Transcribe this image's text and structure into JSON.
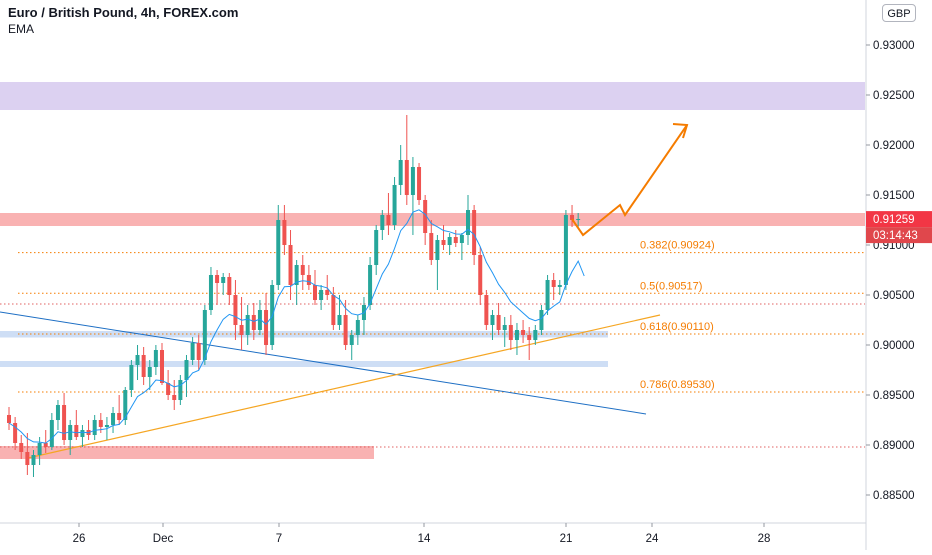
{
  "header": {
    "symbol_title": "Euro / British Pound, 4h, FOREX.com",
    "indicator": "EMA",
    "currency_button": "GBP"
  },
  "price_axis": {
    "ticks": [
      "0.93000",
      "0.92500",
      "0.92000",
      "0.91500",
      "0.91000",
      "0.90500",
      "0.90000",
      "0.89500",
      "0.89000",
      "0.88500"
    ],
    "current_price": "0.91259",
    "countdown": "03:14:43",
    "price_color": "#f23645",
    "countdown_color": "#e0474c"
  },
  "time_axis": {
    "ticks": [
      "26",
      "Dec",
      "7",
      "14",
      "21",
      "24",
      "28"
    ]
  },
  "fib_levels": [
    {
      "label": "0.382(0.90924)",
      "price": 0.90924
    },
    {
      "label": "0.5(0.90517)",
      "price": 0.90517
    },
    {
      "label": "0.618(0.90110)",
      "price": 0.9011
    },
    {
      "label": "0.786(0.89530)",
      "price": 0.8953
    }
  ],
  "colors": {
    "up_candle": "#26a69a",
    "down_candle": "#ef5350",
    "ema": "#2196f3",
    "fib": "#f57c00",
    "resistance_zone": "#f8a5a5",
    "top_zone": "#d6c9ee",
    "support_zone": "#c5d8f3",
    "trend_up": "#f5a623",
    "trend_down": "#1e6fc4",
    "projection": "#f57c00"
  },
  "chart_data": {
    "type": "candlestick",
    "title": "Euro / British Pound, 4h, FOREX.com",
    "ylabel": "GBP",
    "ylim": [
      0.883,
      0.9335
    ],
    "x_ticks": [
      "26",
      "Dec",
      "7",
      "14",
      "21",
      "24",
      "28"
    ],
    "indicators": [
      "EMA"
    ],
    "zones": [
      {
        "name": "top",
        "low": 0.9235,
        "high": 0.9263
      },
      {
        "name": "resistance",
        "low": 0.9119,
        "high": 0.9132
      },
      {
        "name": "support-1",
        "low": 0.90075,
        "high": 0.9014
      },
      {
        "name": "support-2",
        "low": 0.8978,
        "high": 0.8984
      },
      {
        "name": "demand",
        "low": 0.8886,
        "high": 0.8899
      }
    ],
    "dotted_levels": [
      0.90924,
      0.90517,
      0.9041,
      0.9011,
      0.8953,
      0.8898
    ],
    "candles": [
      [
        0.893,
        0.8938,
        0.8915,
        0.8922
      ],
      [
        0.8922,
        0.8928,
        0.8895,
        0.8902
      ],
      [
        0.8902,
        0.891,
        0.8886,
        0.8893
      ],
      [
        0.8893,
        0.8912,
        0.887,
        0.888
      ],
      [
        0.888,
        0.8895,
        0.8868,
        0.889
      ],
      [
        0.889,
        0.8908,
        0.888,
        0.8902
      ],
      [
        0.8902,
        0.8915,
        0.8892,
        0.8898
      ],
      [
        0.8898,
        0.8932,
        0.8895,
        0.8925
      ],
      [
        0.8925,
        0.8945,
        0.8915,
        0.894
      ],
      [
        0.894,
        0.8952,
        0.89,
        0.8905
      ],
      [
        0.8905,
        0.8925,
        0.889,
        0.892
      ],
      [
        0.892,
        0.8935,
        0.8905,
        0.8908
      ],
      [
        0.8908,
        0.892,
        0.8898,
        0.8915
      ],
      [
        0.8915,
        0.8925,
        0.8905,
        0.891
      ],
      [
        0.891,
        0.893,
        0.8905,
        0.8925
      ],
      [
        0.8925,
        0.8932,
        0.8912,
        0.8918
      ],
      [
        0.8918,
        0.8928,
        0.8905,
        0.892
      ],
      [
        0.892,
        0.8938,
        0.8912,
        0.8932
      ],
      [
        0.8932,
        0.895,
        0.892,
        0.8925
      ],
      [
        0.8925,
        0.8958,
        0.892,
        0.8955
      ],
      [
        0.8955,
        0.8985,
        0.8948,
        0.898
      ],
      [
        0.898,
        0.9,
        0.8965,
        0.899
      ],
      [
        0.899,
        0.8998,
        0.896,
        0.8968
      ],
      [
        0.8968,
        0.8985,
        0.8955,
        0.8978
      ],
      [
        0.8978,
        0.9,
        0.897,
        0.8995
      ],
      [
        0.8995,
        0.9002,
        0.896,
        0.8962
      ],
      [
        0.8962,
        0.8975,
        0.8945,
        0.895
      ],
      [
        0.895,
        0.8965,
        0.8935,
        0.8945
      ],
      [
        0.8945,
        0.897,
        0.894,
        0.8965
      ],
      [
        0.8965,
        0.899,
        0.8948,
        0.8985
      ],
      [
        0.8985,
        0.9008,
        0.898,
        0.9002
      ],
      [
        0.9002,
        0.901,
        0.8975,
        0.8985
      ],
      [
        0.8985,
        0.904,
        0.898,
        0.9035
      ],
      [
        0.9035,
        0.9078,
        0.903,
        0.907
      ],
      [
        0.907,
        0.9075,
        0.904,
        0.9062
      ],
      [
        0.9062,
        0.9072,
        0.905,
        0.9068
      ],
      [
        0.9068,
        0.9072,
        0.904,
        0.905
      ],
      [
        0.905,
        0.9065,
        0.9005,
        0.902
      ],
      [
        0.902,
        0.9048,
        0.8995,
        0.901
      ],
      [
        0.901,
        0.904,
        0.9,
        0.903
      ],
      [
        0.903,
        0.9042,
        0.9005,
        0.9015
      ],
      [
        0.9015,
        0.9045,
        0.901,
        0.9035
      ],
      [
        0.9035,
        0.9052,
        0.899,
        0.9
      ],
      [
        0.9,
        0.9065,
        0.8995,
        0.906
      ],
      [
        0.906,
        0.914,
        0.9055,
        0.9125
      ],
      [
        0.9125,
        0.914,
        0.909,
        0.91
      ],
      [
        0.91,
        0.9115,
        0.9045,
        0.906
      ],
      [
        0.906,
        0.9085,
        0.904,
        0.908
      ],
      [
        0.908,
        0.909,
        0.9055,
        0.907
      ],
      [
        0.907,
        0.908,
        0.9055,
        0.906
      ],
      [
        0.906,
        0.9075,
        0.904,
        0.9045
      ],
      [
        0.9045,
        0.906,
        0.9035,
        0.9055
      ],
      [
        0.9055,
        0.907,
        0.9045,
        0.905
      ],
      [
        0.905,
        0.9058,
        0.9015,
        0.902
      ],
      [
        0.902,
        0.905,
        0.9015,
        0.903
      ],
      [
        0.903,
        0.9045,
        0.8995,
        0.9
      ],
      [
        0.9,
        0.9015,
        0.8985,
        0.901
      ],
      [
        0.901,
        0.903,
        0.9,
        0.9025
      ],
      [
        0.9025,
        0.9048,
        0.901,
        0.904
      ],
      [
        0.904,
        0.9088,
        0.9035,
        0.908
      ],
      [
        0.908,
        0.912,
        0.907,
        0.9115
      ],
      [
        0.9115,
        0.9135,
        0.9105,
        0.913
      ],
      [
        0.913,
        0.9152,
        0.911,
        0.912
      ],
      [
        0.912,
        0.9168,
        0.9115,
        0.916
      ],
      [
        0.916,
        0.92,
        0.915,
        0.9185
      ],
      [
        0.9185,
        0.923,
        0.914,
        0.915
      ],
      [
        0.915,
        0.9188,
        0.911,
        0.9178
      ],
      [
        0.9178,
        0.9182,
        0.914,
        0.9145
      ],
      [
        0.9145,
        0.915,
        0.91,
        0.9112
      ],
      [
        0.9112,
        0.9125,
        0.908,
        0.9085
      ],
      [
        0.9085,
        0.911,
        0.9055,
        0.9105
      ],
      [
        0.9105,
        0.912,
        0.9095,
        0.91
      ],
      [
        0.91,
        0.9112,
        0.909,
        0.9108
      ],
      [
        0.9108,
        0.9115,
        0.9098,
        0.9102
      ],
      [
        0.9102,
        0.9112,
        0.9085,
        0.911
      ],
      [
        0.911,
        0.915,
        0.91,
        0.9135
      ],
      [
        0.9135,
        0.914,
        0.908,
        0.909
      ],
      [
        0.909,
        0.9098,
        0.904,
        0.905
      ],
      [
        0.905,
        0.9055,
        0.9015,
        0.902
      ],
      [
        0.902,
        0.9035,
        0.9005,
        0.903
      ],
      [
        0.903,
        0.9042,
        0.901,
        0.9015
      ],
      [
        0.9015,
        0.9028,
        0.8998,
        0.902
      ],
      [
        0.902,
        0.903,
        0.8995,
        0.9005
      ],
      [
        0.9005,
        0.9022,
        0.899,
        0.9015
      ],
      [
        0.9015,
        0.9025,
        0.9002,
        0.901
      ],
      [
        0.901,
        0.9018,
        0.8985,
        0.9005
      ],
      [
        0.9005,
        0.902,
        0.9,
        0.9015
      ],
      [
        0.9015,
        0.904,
        0.901,
        0.9035
      ],
      [
        0.9035,
        0.907,
        0.903,
        0.9065
      ],
      [
        0.9065,
        0.9072,
        0.9045,
        0.9058
      ],
      [
        0.9058,
        0.9065,
        0.905,
        0.906
      ],
      [
        0.906,
        0.9135,
        0.9055,
        0.913
      ],
      [
        0.913,
        0.914,
        0.9118,
        0.9125
      ],
      [
        0.9125,
        0.9132,
        0.9118,
        0.9126
      ]
    ],
    "projection": [
      0.91259,
      0.911,
      0.914,
      0.913,
      0.922
    ]
  }
}
